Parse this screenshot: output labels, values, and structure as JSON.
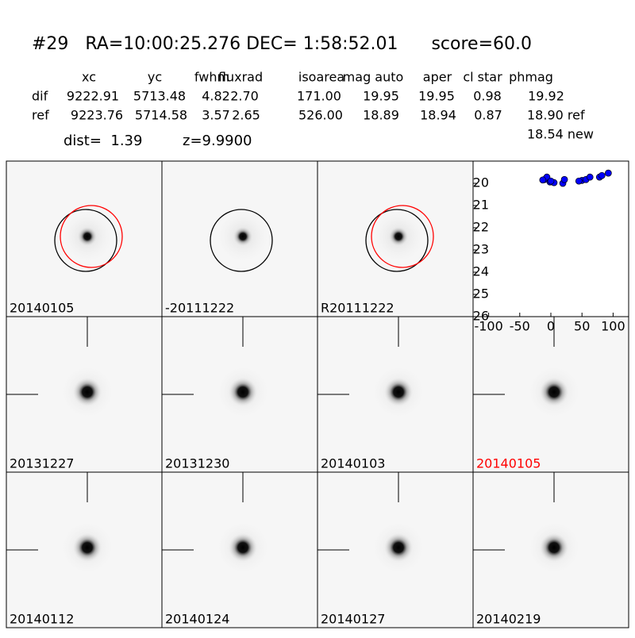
{
  "header": {
    "title": "#29   RA=10:00:25.276 DEC= 1:58:52.01      score=60.0",
    "dist": "dist=  1.39",
    "z": "z=9.9900",
    "new": "18.54 new"
  },
  "table": {
    "columns": [
      "xc",
      "yc",
      "fwhm",
      "fluxrad",
      "isoarea",
      "mag auto",
      "aper",
      "cl star",
      "phmag"
    ],
    "rows": [
      {
        "label": "dif",
        "cells": [
          "9222.91",
          "5713.48",
          "4.82",
          "2.70",
          "171.00",
          "19.95",
          "19.95",
          "0.98",
          "19.92"
        ]
      },
      {
        "label": "ref",
        "cells": [
          "9223.76",
          "5714.58",
          "3.57",
          "2.65",
          "526.00",
          "18.89",
          "18.94",
          "0.87",
          "18.90 ref"
        ]
      }
    ]
  },
  "panels": [
    {
      "label": "20140105"
    },
    {
      "label": "-20111222"
    },
    {
      "label": "R20111222"
    },
    {
      "label": "20131227"
    },
    {
      "label": "20131230"
    },
    {
      "label": "20140103"
    },
    {
      "label": "20140105",
      "color": "#ff0000"
    },
    {
      "label": "20140112"
    },
    {
      "label": "20140124"
    },
    {
      "label": "20140127"
    },
    {
      "label": "20140219"
    }
  ],
  "chart_data": {
    "type": "scatter",
    "color": "#0000ff",
    "x": [
      -10.3,
      -6.4,
      -1.3,
      5.1,
      19.2,
      21.8,
      50,
      56.4,
      62.8,
      78.2,
      82,
      92.3,
      -13,
      0,
      45
    ],
    "values": [
      19.83,
      19.72,
      19.94,
      19.97,
      20.0,
      19.83,
      19.87,
      19.83,
      19.72,
      19.72,
      19.65,
      19.54,
      19.85,
      19.9,
      19.9
    ],
    "xlim": [
      -125,
      125
    ],
    "ylim": [
      19,
      26
    ],
    "y_inverted": true,
    "xticks": [
      -100,
      -50,
      0,
      50,
      100
    ],
    "yticks": [
      20,
      21,
      22,
      23,
      24,
      25,
      26
    ]
  }
}
